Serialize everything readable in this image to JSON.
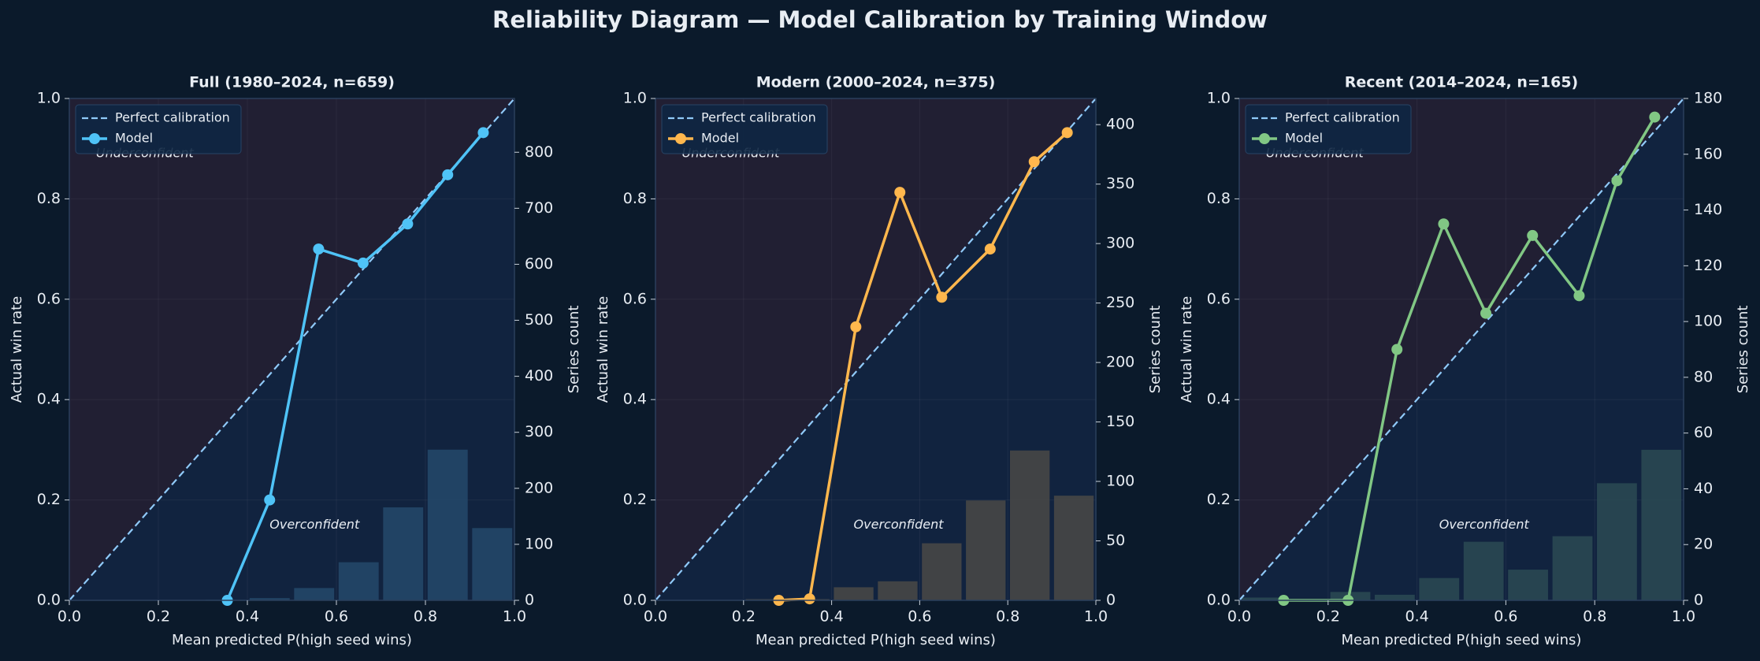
{
  "title": "Reliability Diagram — Model Calibration by Training Window",
  "chart_data": [
    {
      "type": "line",
      "title": "Full (1980–2024, n=659)",
      "xlabel": "Mean predicted P(high seed wins)",
      "ylabel": "Actual win rate",
      "y2label": "Series count",
      "xlim": [
        0,
        1
      ],
      "ylim": [
        0,
        1
      ],
      "y2lim": [
        0,
        896
      ],
      "xticks": [
        {
          "value": 0,
          "label": "0.0"
        },
        {
          "value": 0.2,
          "label": "0.2"
        },
        {
          "value": 0.4,
          "label": "0.4"
        },
        {
          "value": 0.6,
          "label": "0.6"
        },
        {
          "value": 0.8,
          "label": "0.8"
        },
        {
          "value": 1,
          "label": "1.0"
        }
      ],
      "yticks": [
        {
          "value": 0,
          "label": "0.0"
        },
        {
          "value": 0.2,
          "label": "0.2"
        },
        {
          "value": 0.4,
          "label": "0.4"
        },
        {
          "value": 0.6,
          "label": "0.6"
        },
        {
          "value": 0.8,
          "label": "0.8"
        },
        {
          "value": 1,
          "label": "1.0"
        }
      ],
      "y2ticks": [
        0,
        100,
        200,
        300,
        400,
        500,
        600,
        700,
        800
      ],
      "grid": true,
      "legend": "upper left",
      "series": [
        {
          "name": "Perfect calibration",
          "color": "#90caf9",
          "dashed": true,
          "x": [
            0,
            1
          ],
          "values": [
            0,
            1
          ]
        },
        {
          "name": "Model",
          "color": "#4fc3f7",
          "x": [
            0.355,
            0.45,
            0.56,
            0.66,
            0.76,
            0.85,
            0.93
          ],
          "values": [
            0.0,
            0.2,
            0.7,
            0.672,
            0.75,
            0.848,
            0.932
          ]
        }
      ],
      "histogram": {
        "axis": "y2",
        "color": "#24496b",
        "bins": [
          0,
          0.1,
          0.2,
          0.3,
          0.4,
          0.5,
          0.6,
          0.7,
          0.8,
          0.9,
          1.0
        ],
        "counts": [
          0,
          0,
          0,
          1,
          4,
          22,
          68,
          166,
          269,
          129
        ]
      },
      "annotations": [
        {
          "text": "Underconfident",
          "color": "#e57373"
        },
        {
          "text": "Overconfident",
          "color": "#9fa8da"
        }
      ]
    },
    {
      "type": "line",
      "title": "Modern (2000–2024, n=375)",
      "xlabel": "Mean predicted P(high seed wins)",
      "ylabel": "Actual win rate",
      "y2label": "Series count",
      "xlim": [
        0,
        1
      ],
      "ylim": [
        0,
        1
      ],
      "y2lim": [
        0,
        422
      ],
      "xticks": [
        {
          "value": 0,
          "label": "0.0"
        },
        {
          "value": 0.2,
          "label": "0.2"
        },
        {
          "value": 0.4,
          "label": "0.4"
        },
        {
          "value": 0.6,
          "label": "0.6"
        },
        {
          "value": 0.8,
          "label": "0.8"
        },
        {
          "value": 1,
          "label": "1.0"
        }
      ],
      "yticks": [
        {
          "value": 0,
          "label": "0.0"
        },
        {
          "value": 0.2,
          "label": "0.2"
        },
        {
          "value": 0.4,
          "label": "0.4"
        },
        {
          "value": 0.6,
          "label": "0.6"
        },
        {
          "value": 0.8,
          "label": "0.8"
        },
        {
          "value": 1,
          "label": "1.0"
        }
      ],
      "y2ticks": [
        0,
        50,
        100,
        150,
        200,
        250,
        300,
        350,
        400
      ],
      "grid": true,
      "legend": "upper left",
      "series": [
        {
          "name": "Perfect calibration",
          "color": "#90caf9",
          "dashed": true,
          "x": [
            0,
            1
          ],
          "values": [
            0,
            1
          ]
        },
        {
          "name": "Model",
          "color": "#ffb74d",
          "x": [
            0.28,
            0.35,
            0.455,
            0.555,
            0.65,
            0.76,
            0.86,
            0.935
          ],
          "values": [
            0.0,
            0.003,
            0.545,
            0.813,
            0.604,
            0.7,
            0.874,
            0.932
          ]
        }
      ],
      "histogram": {
        "axis": "y2",
        "color": "#4a4947",
        "bins": [
          0,
          0.1,
          0.2,
          0.3,
          0.4,
          0.5,
          0.6,
          0.7,
          0.8,
          0.9,
          1.0
        ],
        "counts": [
          0,
          0,
          1,
          1,
          11,
          16,
          48,
          84,
          126,
          88
        ]
      },
      "annotations": [
        {
          "text": "Underconfident",
          "color": "#e57373"
        },
        {
          "text": "Overconfident",
          "color": "#9fa8da"
        }
      ]
    },
    {
      "type": "line",
      "title": "Recent (2014–2024, n=165)",
      "xlabel": "Mean predicted P(high seed wins)",
      "ylabel": "Actual win rate",
      "y2label": "Series count",
      "xlim": [
        0,
        1
      ],
      "ylim": [
        0,
        1
      ],
      "y2lim": [
        0,
        180
      ],
      "xticks": [
        {
          "value": 0,
          "label": "0.0"
        },
        {
          "value": 0.2,
          "label": "0.2"
        },
        {
          "value": 0.4,
          "label": "0.4"
        },
        {
          "value": 0.6,
          "label": "0.6"
        },
        {
          "value": 0.8,
          "label": "0.8"
        },
        {
          "value": 1,
          "label": "1.0"
        }
      ],
      "yticks": [
        {
          "value": 0,
          "label": "0.0"
        },
        {
          "value": 0.2,
          "label": "0.2"
        },
        {
          "value": 0.4,
          "label": "0.4"
        },
        {
          "value": 0.6,
          "label": "0.6"
        },
        {
          "value": 0.8,
          "label": "0.8"
        },
        {
          "value": 1,
          "label": "1.0"
        }
      ],
      "y2ticks": [
        0,
        20,
        40,
        60,
        80,
        100,
        120,
        140,
        160,
        180
      ],
      "grid": true,
      "legend": "upper left",
      "series": [
        {
          "name": "Perfect calibration",
          "color": "#90caf9",
          "dashed": true,
          "x": [
            0,
            1
          ],
          "values": [
            0,
            1
          ]
        },
        {
          "name": "Model",
          "color": "#81c784",
          "x": [
            0.1,
            0.245,
            0.355,
            0.46,
            0.555,
            0.66,
            0.765,
            0.85,
            0.935
          ],
          "values": [
            0.0,
            0.0,
            0.5,
            0.75,
            0.572,
            0.727,
            0.607,
            0.836,
            0.963
          ]
        }
      ],
      "histogram": {
        "axis": "y2",
        "color": "#2c4a53",
        "bins": [
          0,
          0.1,
          0.2,
          0.3,
          0.4,
          0.5,
          0.6,
          0.7,
          0.8,
          0.9,
          1.0
        ],
        "counts": [
          1,
          0,
          3,
          2,
          8,
          21,
          11,
          23,
          42,
          54
        ]
      },
      "annotations": [
        {
          "text": "Underconfident",
          "color": "#e57373"
        },
        {
          "text": "Overconfident",
          "color": "#9fa8da"
        }
      ]
    }
  ]
}
